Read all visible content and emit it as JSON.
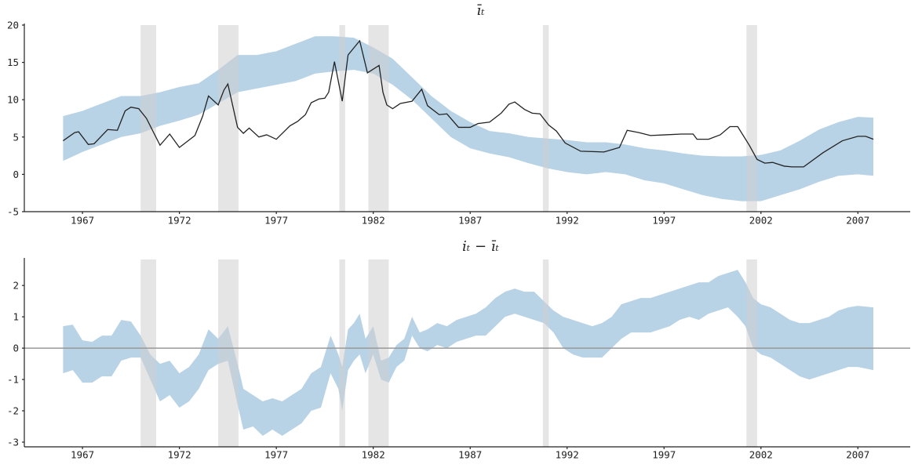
{
  "chart_data": [
    {
      "type": "band",
      "title": "īₜ",
      "xlim": [
        1964,
        2009.7
      ],
      "ylim": [
        -5,
        20
      ],
      "xticks": [
        1967,
        1972,
        1977,
        1982,
        1987,
        1992,
        1997,
        2002,
        2007
      ],
      "yticks": [
        -5,
        0,
        5,
        10,
        15,
        20
      ],
      "shaded_spans": [
        [
          1970.0,
          1970.8
        ],
        [
          1974.0,
          1975.05
        ],
        [
          1980.25,
          1980.55
        ],
        [
          1981.75,
          1982.8
        ],
        [
          1990.75,
          1991.05
        ],
        [
          2001.25,
          2001.8
        ]
      ],
      "shade_color": "#cfcfcf",
      "band": {
        "color": "#b8d2e6",
        "x": [
          1966,
          1967,
          1968,
          1969,
          1970,
          1971,
          1972,
          1973,
          1974,
          1975,
          1976,
          1977,
          1978,
          1979,
          1980,
          1981,
          1982,
          1983,
          1984,
          1985,
          1986,
          1987,
          1988,
          1989,
          1990,
          1991,
          1992,
          1993,
          1994,
          1995,
          1996,
          1997,
          1998,
          1999,
          2000,
          2001,
          2002,
          2003,
          2004,
          2005,
          2006,
          2007,
          2007.8
        ],
        "upper": [
          7.8,
          8.5,
          9.5,
          10.5,
          10.5,
          11.0,
          11.7,
          12.2,
          14.0,
          16.0,
          16.0,
          16.5,
          17.5,
          18.5,
          18.5,
          18.3,
          17.0,
          15.5,
          13.0,
          10.5,
          8.5,
          7.0,
          5.8,
          5.5,
          5.0,
          4.8,
          4.6,
          4.3,
          4.3,
          4.0,
          3.5,
          3.2,
          2.8,
          2.5,
          2.4,
          2.4,
          2.6,
          3.2,
          4.5,
          6.0,
          7.0,
          7.7,
          7.6
        ],
        "lower": [
          1.8,
          3.0,
          4.0,
          5.0,
          5.5,
          6.5,
          7.2,
          8.0,
          9.5,
          11.0,
          11.5,
          12.0,
          12.5,
          13.5,
          13.8,
          14.0,
          13.5,
          12.0,
          10.0,
          7.5,
          5.0,
          3.5,
          2.8,
          2.3,
          1.5,
          0.8,
          0.3,
          0.0,
          0.3,
          0.0,
          -0.8,
          -1.2,
          -2.0,
          -2.8,
          -3.3,
          -3.6,
          -3.6,
          -2.8,
          -2.0,
          -1.0,
          -0.2,
          0.0,
          -0.2
        ]
      },
      "line": {
        "color": "#222222",
        "x": [
          1966.0,
          1966.6,
          1966.8,
          1967.3,
          1967.6,
          1968.3,
          1968.8,
          1969.2,
          1969.5,
          1969.9,
          1970.3,
          1971.0,
          1971.5,
          1972.0,
          1972.4,
          1972.8,
          1973.2,
          1973.5,
          1974.0,
          1974.3,
          1974.5,
          1975.0,
          1975.3,
          1975.6,
          1976.1,
          1976.5,
          1977.0,
          1977.7,
          1978.1,
          1978.5,
          1978.8,
          1979.2,
          1979.5,
          1979.7,
          1980.0,
          1980.4,
          1980.7,
          1981.3,
          1981.7,
          1982.3,
          1982.5,
          1982.7,
          1983.0,
          1983.4,
          1984.0,
          1984.5,
          1984.8,
          1985.4,
          1985.8,
          1986.4,
          1987.0,
          1987.4,
          1988.0,
          1988.6,
          1989.0,
          1989.3,
          1989.8,
          1990.2,
          1990.6,
          1991.05,
          1991.45,
          1991.9,
          1992.7,
          1993.9,
          1994.7,
          1995.1,
          1995.7,
          1996.3,
          1997.1,
          1997.9,
          1998.5,
          1998.7,
          1999.3,
          1999.9,
          2000.4,
          2000.8,
          2001.4,
          2001.8,
          2002.2,
          2002.6,
          2003.2,
          2003.6,
          2004.2,
          2005.2,
          2006.2,
          2007.0,
          2007.4,
          2007.8
        ],
        "values": [
          4.5,
          5.6,
          5.7,
          4.0,
          4.1,
          6.0,
          5.9,
          8.5,
          9.0,
          8.8,
          7.5,
          3.9,
          5.4,
          3.6,
          4.4,
          5.2,
          7.8,
          10.5,
          9.3,
          11.3,
          12.1,
          6.3,
          5.5,
          6.2,
          5.0,
          5.3,
          4.7,
          6.5,
          7.1,
          8.0,
          9.6,
          10.1,
          10.2,
          11.0,
          15.1,
          9.8,
          16.0,
          17.9,
          13.6,
          14.6,
          11.0,
          9.3,
          8.8,
          9.5,
          9.8,
          11.4,
          9.2,
          8.0,
          8.1,
          6.3,
          6.3,
          6.8,
          7.0,
          8.2,
          9.4,
          9.7,
          8.7,
          8.2,
          8.1,
          6.6,
          5.8,
          4.2,
          3.1,
          3.0,
          3.6,
          5.9,
          5.6,
          5.2,
          5.3,
          5.4,
          5.4,
          4.7,
          4.7,
          5.3,
          6.4,
          6.4,
          3.9,
          2.0,
          1.5,
          1.6,
          1.1,
          1.0,
          1.0,
          2.9,
          4.5,
          5.1,
          5.1,
          4.7
        ]
      }
    },
    {
      "type": "band",
      "title": "iₜ − īₜ",
      "xlim": [
        1964,
        2009.7
      ],
      "ylim": [
        -3.15,
        2.83
      ],
      "xticks": [
        1967,
        1972,
        1977,
        1982,
        1987,
        1992,
        1997,
        2002,
        2007
      ],
      "yticks": [
        -3,
        -2,
        -1,
        0,
        1,
        2
      ],
      "reference_line": 0,
      "reference_color": "#999999",
      "shaded_spans": [
        [
          1970.0,
          1970.8
        ],
        [
          1974.0,
          1975.05
        ],
        [
          1980.25,
          1980.55
        ],
        [
          1981.75,
          1982.8
        ],
        [
          1990.75,
          1991.05
        ],
        [
          2001.25,
          2001.8
        ]
      ],
      "shade_color": "#cfcfcf",
      "band": {
        "color": "#b8d2e6",
        "x": [
          1966.0,
          1966.5,
          1967,
          1967.5,
          1968,
          1968.5,
          1969,
          1969.5,
          1970,
          1970.5,
          1971,
          1971.5,
          1972,
          1972.5,
          1973,
          1973.5,
          1974,
          1974.5,
          1975,
          1975.3,
          1975.8,
          1976.3,
          1976.8,
          1977.3,
          1977.8,
          1978.3,
          1978.8,
          1979.3,
          1979.8,
          1980.2,
          1980.4,
          1980.7,
          1981,
          1981.3,
          1981.6,
          1982,
          1982.4,
          1982.8,
          1983.2,
          1983.6,
          1984,
          1984.4,
          1984.8,
          1985.3,
          1985.8,
          1986.3,
          1986.8,
          1987.3,
          1987.8,
          1988.3,
          1988.8,
          1989.3,
          1989.8,
          1990.3,
          1990.8,
          1991.3,
          1991.8,
          1992.3,
          1992.8,
          1993.3,
          1993.8,
          1994.3,
          1994.8,
          1995.3,
          1995.8,
          1996.3,
          1996.8,
          1997.3,
          1997.8,
          1998.3,
          1998.8,
          1999.3,
          1999.8,
          2000.3,
          2000.8,
          2001.2,
          2001.6,
          2002,
          2002.5,
          2003,
          2003.5,
          2004,
          2004.5,
          2005,
          2005.5,
          2006,
          2006.5,
          2007,
          2007.8
        ],
        "upper": [
          0.7,
          0.75,
          0.25,
          0.2,
          0.4,
          0.4,
          0.9,
          0.85,
          0.4,
          -0.2,
          -0.5,
          -0.4,
          -0.8,
          -0.6,
          -0.2,
          0.6,
          0.3,
          0.7,
          -0.5,
          -1.3,
          -1.5,
          -1.7,
          -1.6,
          -1.7,
          -1.5,
          -1.3,
          -0.8,
          -0.6,
          0.4,
          -0.2,
          -0.6,
          0.6,
          0.8,
          1.1,
          0.3,
          0.7,
          -0.4,
          -0.3,
          0.1,
          0.3,
          1.0,
          0.5,
          0.6,
          0.8,
          0.7,
          0.9,
          1.0,
          1.1,
          1.3,
          1.6,
          1.8,
          1.9,
          1.8,
          1.8,
          1.5,
          1.2,
          1.0,
          0.9,
          0.8,
          0.7,
          0.8,
          1.0,
          1.4,
          1.5,
          1.6,
          1.6,
          1.7,
          1.8,
          1.9,
          2.0,
          2.1,
          2.1,
          2.3,
          2.4,
          2.5,
          2.1,
          1.6,
          1.4,
          1.3,
          1.1,
          0.9,
          0.8,
          0.8,
          0.9,
          1.0,
          1.2,
          1.3,
          1.35,
          1.3
        ],
        "lower": [
          -0.8,
          -0.7,
          -1.1,
          -1.1,
          -0.9,
          -0.9,
          -0.4,
          -0.3,
          -0.3,
          -1.0,
          -1.7,
          -1.5,
          -1.9,
          -1.7,
          -1.3,
          -0.7,
          -0.5,
          -0.4,
          -1.8,
          -2.6,
          -2.5,
          -2.8,
          -2.6,
          -2.8,
          -2.6,
          -2.4,
          -2.0,
          -1.9,
          -0.8,
          -1.3,
          -2.0,
          -0.7,
          -0.4,
          -0.2,
          -0.8,
          -0.2,
          -1.0,
          -1.1,
          -0.6,
          -0.4,
          0.4,
          0.0,
          -0.1,
          0.1,
          0.0,
          0.2,
          0.3,
          0.4,
          0.4,
          0.7,
          1.0,
          1.1,
          1.0,
          0.9,
          0.8,
          0.5,
          0.0,
          -0.2,
          -0.3,
          -0.3,
          -0.3,
          0.0,
          0.3,
          0.5,
          0.5,
          0.5,
          0.6,
          0.7,
          0.9,
          1.0,
          0.9,
          1.1,
          1.2,
          1.3,
          1.0,
          0.7,
          0.0,
          -0.2,
          -0.3,
          -0.5,
          -0.7,
          -0.9,
          -1.0,
          -0.9,
          -0.8,
          -0.7,
          -0.6,
          -0.6,
          -0.7
        ]
      }
    }
  ]
}
